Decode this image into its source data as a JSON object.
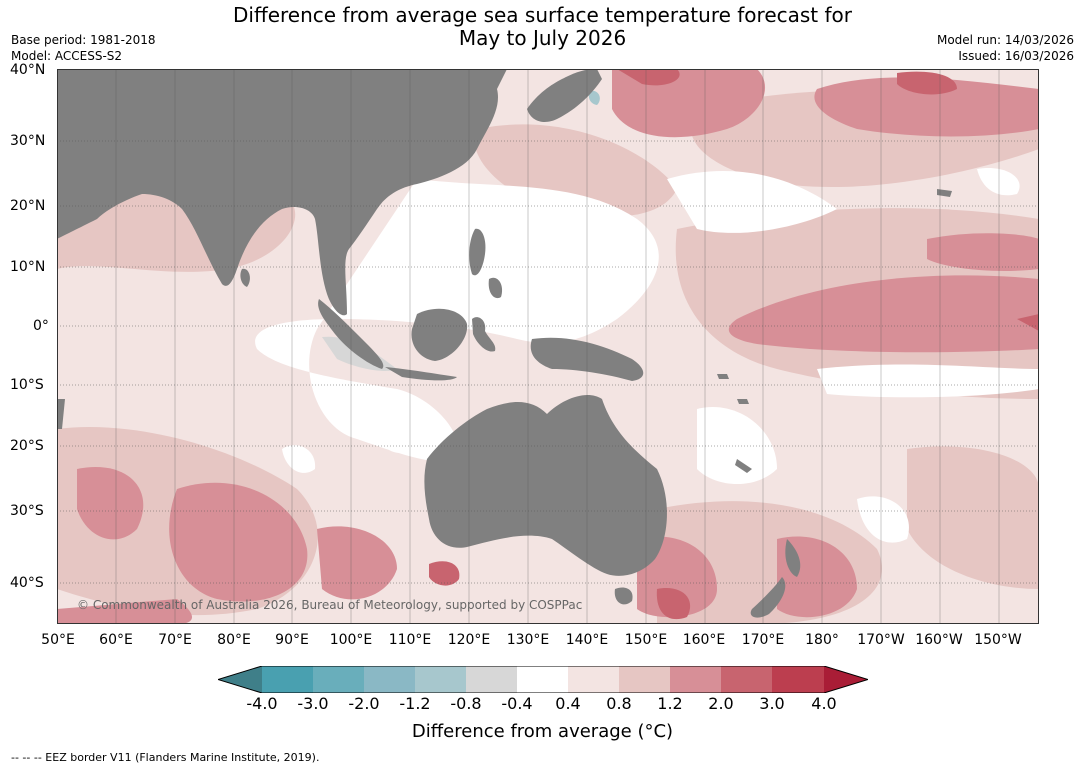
{
  "title": {
    "line1": "Difference from average sea surface temperature forecast for",
    "line2": "May to July 2026"
  },
  "meta_left": {
    "base_period": "Base period: 1981-2018",
    "model": "Model: ACCESS-S2"
  },
  "meta_right": {
    "model_run": "Model run: 14/03/2026",
    "issued": "Issued: 16/03/2026"
  },
  "map": {
    "lat_labels": [
      "40°N",
      "30°N",
      "20°N",
      "10°N",
      "0°",
      "10°S",
      "20°S",
      "30°S",
      "40°S"
    ],
    "lon_labels": [
      "50°E",
      "60°E",
      "70°E",
      "80°E",
      "90°E",
      "100°E",
      "110°E",
      "120°E",
      "130°E",
      "140°E",
      "150°E",
      "160°E",
      "170°E",
      "180°",
      "170°W",
      "160°W",
      "150°W"
    ],
    "credit": "© Commonwealth of Australia 2026, Bureau of Meteorology, supported by COSPPac",
    "colors": {
      "land": "#808080",
      "ocean_base": "#f3e4e2",
      "neutral": "#ffffff",
      "warm1": "#f3e4e2",
      "warm2": "#e6c6c3",
      "warm3": "#d78f97",
      "warm4": "#c8646f",
      "cool1": "#a7c7cd",
      "cool0": "#d7d7d7",
      "grid": "#555555"
    }
  },
  "colorbar": {
    "ticks": [
      "-4.0",
      "-3.0",
      "-2.0",
      "-1.2",
      "-0.8",
      "-0.4",
      "0.4",
      "0.8",
      "1.2",
      "2.0",
      "3.0",
      "4.0"
    ],
    "colors": [
      "#3f7f89",
      "#49a0b0",
      "#69aebb",
      "#8ab8c5",
      "#a7c7cd",
      "#d7d7d7",
      "#ffffff",
      "#f3e4e2",
      "#e6c6c3",
      "#d78f97",
      "#c8646f",
      "#bc3e4f",
      "#a91d36"
    ],
    "label": "Difference from average (°C)"
  },
  "footer": {
    "eez": "--  --  -- EEZ border V11 (Flanders Marine Institute, 2019)."
  }
}
